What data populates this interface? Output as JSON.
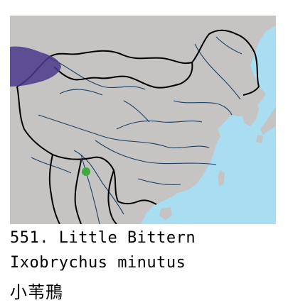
{
  "map": {
    "colors": {
      "sea": "#a9ddf1",
      "land": "#c6c4c3",
      "border": "#000000",
      "river": "#1d3f63",
      "range": "#4a3a8c",
      "record": "#3daa3f"
    },
    "legend_items": [
      {
        "name": "breeding-range",
        "color": "#4a3a8c"
      },
      {
        "name": "record-point",
        "color": "#3daa3f"
      }
    ]
  },
  "caption": {
    "line1": "551. Little Bittern",
    "line2": "Ixobrychus minutus",
    "line3": "小苇鳽"
  }
}
